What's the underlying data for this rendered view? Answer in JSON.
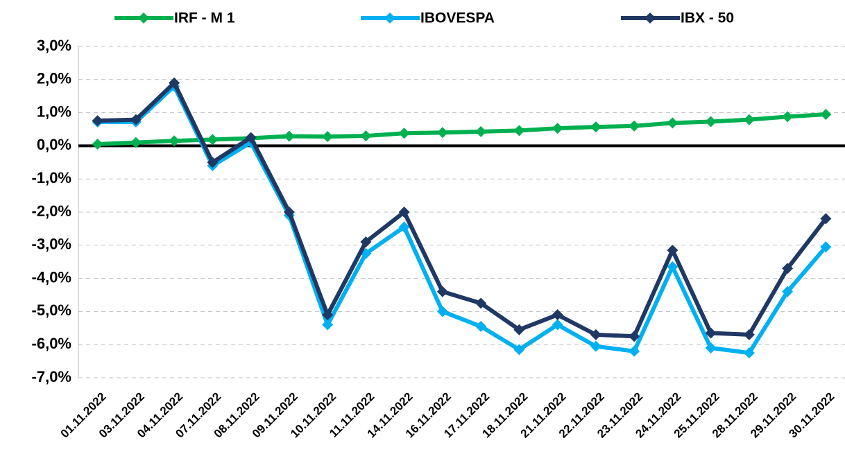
{
  "chart_data": {
    "type": "line",
    "categories": [
      "01.11.2022",
      "03.11.2022",
      "04.11.2022",
      "07.11.2022",
      "08.11.2022",
      "09.11.2022",
      "10.11.2022",
      "11.11.2022",
      "14.11.2022",
      "16.11.2022",
      "17.11.2022",
      "18.11.2022",
      "21.11.2022",
      "22.11.2022",
      "23.11.2022",
      "24.11.2022",
      "25.11.2022",
      "28.11.2022",
      "29.11.2022",
      "30.11.2022"
    ],
    "series": [
      {
        "name": "IRF - M 1",
        "color": "#00b050",
        "values": [
          0.05,
          0.1,
          0.15,
          0.19,
          0.23,
          0.29,
          0.28,
          0.3,
          0.38,
          0.4,
          0.43,
          0.46,
          0.53,
          0.57,
          0.6,
          0.69,
          0.73,
          0.79,
          0.88,
          0.95
        ]
      },
      {
        "name": "IBOVESPA",
        "color": "#00b0f0",
        "values": [
          0.72,
          0.72,
          1.8,
          -0.6,
          0.1,
          -2.1,
          -5.4,
          -3.25,
          -2.45,
          -5.0,
          -5.45,
          -6.15,
          -5.4,
          -6.05,
          -6.2,
          -3.65,
          -6.1,
          -6.25,
          -4.4,
          -3.05
        ]
      },
      {
        "name": "IBX - 50",
        "color": "#203864",
        "values": [
          0.76,
          0.79,
          1.9,
          -0.5,
          0.25,
          -2.0,
          -5.1,
          -2.9,
          -2.0,
          -4.4,
          -4.75,
          -5.55,
          -5.1,
          -5.7,
          -5.75,
          -3.15,
          -5.65,
          -5.7,
          -3.7,
          -2.2
        ]
      }
    ],
    "ylim": [
      -7,
      3
    ],
    "yticks": [
      {
        "value": -7,
        "label": "-7,0%"
      },
      {
        "value": -6,
        "label": "-6,0%"
      },
      {
        "value": -5,
        "label": "-5,0%"
      },
      {
        "value": -4,
        "label": "-4,0%"
      },
      {
        "value": -3,
        "label": "-3,0%"
      },
      {
        "value": -2,
        "label": "-2,0%"
      },
      {
        "value": -1,
        "label": "-1,0%"
      },
      {
        "value": 0,
        "label": "0,0%"
      },
      {
        "value": 1,
        "label": "1,0%"
      },
      {
        "value": 2,
        "label": "2,0%"
      },
      {
        "value": 3,
        "label": "3,0%"
      }
    ],
    "grid": true,
    "legend": "top"
  }
}
